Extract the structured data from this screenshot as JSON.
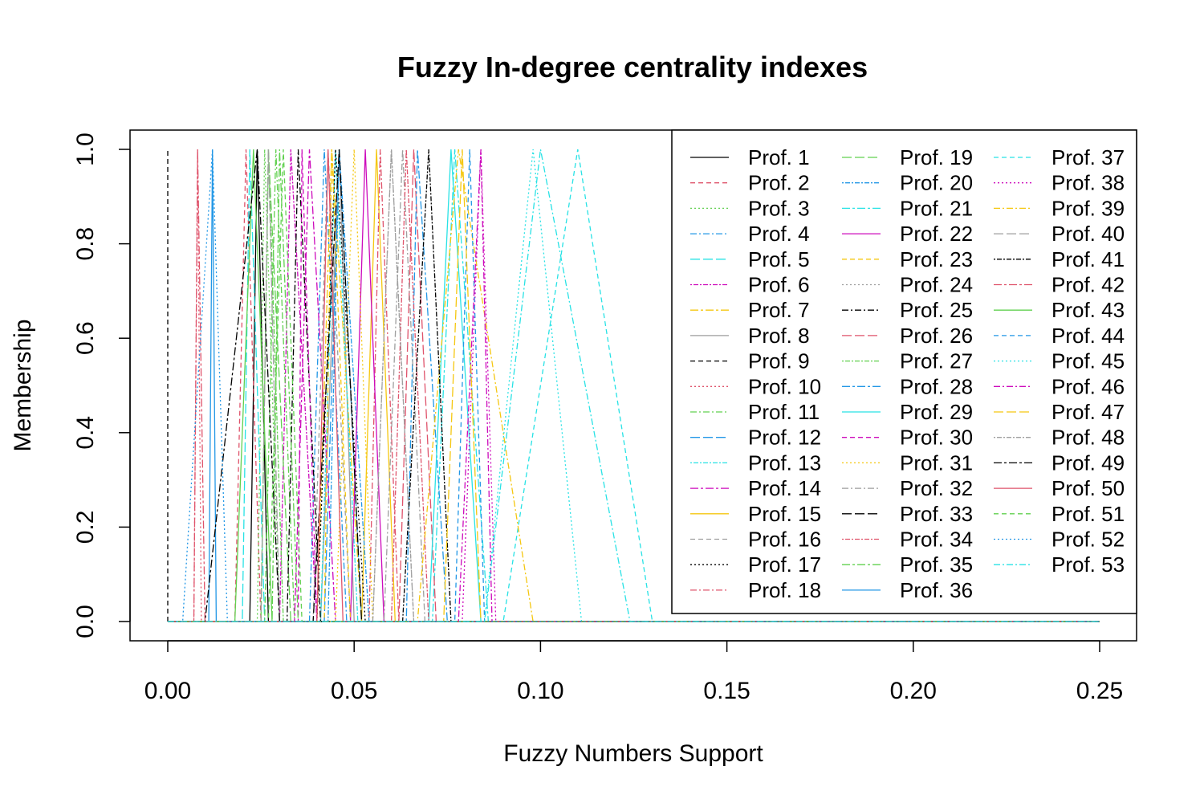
{
  "chart_data": {
    "type": "line",
    "title": "Fuzzy In-degree centrality indexes",
    "xlabel": "Fuzzy Numbers Support",
    "ylabel": "Membership",
    "xlim": [
      0,
      0.25
    ],
    "ylim": [
      0,
      1
    ],
    "x_ticks": [
      "0.00",
      "0.05",
      "0.10",
      "0.15",
      "0.20",
      "0.25"
    ],
    "y_ticks": [
      "0.0",
      "0.2",
      "0.4",
      "0.6",
      "0.8",
      "1.0"
    ],
    "legend_position": "top-right",
    "legend_columns": 3,
    "palette": [
      "#000000",
      "#DF536B",
      "#61D04F",
      "#2297E6",
      "#28E2E5",
      "#CD0BBC",
      "#F5C710",
      "#9E9E9E"
    ],
    "series": [
      {
        "name": "Prof. 1",
        "triangle": [
          0.022,
          0.024,
          0.027
        ]
      },
      {
        "name": "Prof. 2",
        "triangle": [
          0.018,
          0.021,
          0.025
        ]
      },
      {
        "name": "Prof. 3",
        "triangle": [
          0.024,
          0.026,
          0.03
        ]
      },
      {
        "name": "Prof. 4",
        "triangle": [
          0.038,
          0.042,
          0.048
        ]
      },
      {
        "name": "Prof. 5",
        "triangle": [
          0.02,
          0.022,
          0.026
        ]
      },
      {
        "name": "Prof. 6",
        "triangle": [
          0.03,
          0.033,
          0.04
        ]
      },
      {
        "name": "Prof. 7",
        "triangle": [
          0.04,
          0.044,
          0.052
        ]
      },
      {
        "name": "Prof. 8",
        "triangle": [
          0.041,
          0.046,
          0.05
        ]
      },
      {
        "name": "Prof. 9",
        "triangle": [
          0.0,
          0.0,
          0.0
        ]
      },
      {
        "name": "Prof. 10",
        "triangle": [
          0.007,
          0.008,
          0.009
        ]
      },
      {
        "name": "Prof. 11",
        "triangle": [
          0.026,
          0.029,
          0.034
        ]
      },
      {
        "name": "Prof. 12",
        "triangle": [
          0.042,
          0.046,
          0.052
        ]
      },
      {
        "name": "Prof. 13",
        "triangle": [
          0.041,
          0.045,
          0.051
        ]
      },
      {
        "name": "Prof. 14",
        "triangle": [
          0.034,
          0.038,
          0.045
        ]
      },
      {
        "name": "Prof. 15",
        "triangle": [
          0.052,
          0.056,
          0.061
        ]
      },
      {
        "name": "Prof. 16",
        "triangle": [
          0.039,
          0.043,
          0.049
        ]
      },
      {
        "name": "Prof. 17",
        "triangle": [
          0.04,
          0.045,
          0.053
        ]
      },
      {
        "name": "Prof. 18",
        "triangle": [
          0.054,
          0.057,
          0.062
        ]
      },
      {
        "name": "Prof. 19",
        "triangle": [
          0.025,
          0.027,
          0.033
        ]
      },
      {
        "name": "Prof. 20",
        "triangle": [
          0.043,
          0.046,
          0.054
        ]
      },
      {
        "name": "Prof. 21",
        "triangle": [
          0.071,
          0.077,
          0.086
        ]
      },
      {
        "name": "Prof. 22",
        "triangle": [
          0.049,
          0.053,
          0.058
        ]
      },
      {
        "name": "Prof. 23",
        "triangle": [
          0.042,
          0.044,
          0.049
        ]
      },
      {
        "name": "Prof. 24",
        "triangle": [
          0.055,
          0.06,
          0.066
        ]
      },
      {
        "name": "Prof. 25",
        "triangle": [
          0.032,
          0.035,
          0.041
        ]
      },
      {
        "name": "Prof. 26",
        "triangle": [
          0.062,
          0.066,
          0.072
        ]
      },
      {
        "name": "Prof. 27",
        "triangle": [
          0.025,
          0.027,
          0.031
        ]
      },
      {
        "name": "Prof. 28",
        "triangle": [
          0.064,
          0.067,
          0.075
        ]
      },
      {
        "name": "Prof. 29",
        "triangle": [
          0.07,
          0.076,
          0.084
        ]
      },
      {
        "name": "Prof. 30",
        "triangle": [
          0.035,
          0.036,
          0.04
        ]
      },
      {
        "name": "Prof. 31",
        "triangle": [
          0.045,
          0.05,
          0.055
        ]
      },
      {
        "name": "Prof. 32",
        "triangle": [
          0.058,
          0.063,
          0.069
        ]
      },
      {
        "name": "Prof. 33",
        "triangle": [
          0.039,
          0.046,
          0.052
        ]
      },
      {
        "name": "Prof. 34",
        "triangle": [
          0.06,
          0.064,
          0.07
        ]
      },
      {
        "name": "Prof. 35",
        "triangle": [
          0.028,
          0.03,
          0.035
        ]
      },
      {
        "name": "Prof. 36",
        "triangle": [
          0.011,
          0.012,
          0.013
        ]
      },
      {
        "name": "Prof. 37",
        "triangle": [
          0.09,
          0.11,
          0.13
        ]
      },
      {
        "name": "Prof. 38",
        "triangle": [
          0.079,
          0.084,
          0.088
        ]
      },
      {
        "name": "Prof. 39",
        "triangle": [
          0.067,
          0.078,
          0.098
        ]
      },
      {
        "name": "Prof. 40",
        "triangle": [
          0.025,
          0.027,
          0.03
        ]
      },
      {
        "name": "Prof. 41",
        "triangle": [
          0.063,
          0.07,
          0.076
        ]
      },
      {
        "name": "Prof. 42",
        "triangle": [
          0.007,
          0.008,
          0.01
        ]
      },
      {
        "name": "Prof. 43",
        "triangle": [
          0.018,
          0.023,
          0.028
        ]
      },
      {
        "name": "Prof. 44",
        "triangle": [
          0.077,
          0.081,
          0.085
        ]
      },
      {
        "name": "Prof. 45",
        "triangle": [
          0.085,
          0.098,
          0.111
        ]
      },
      {
        "name": "Prof. 46",
        "triangle": [
          0.078,
          0.084,
          0.087
        ]
      },
      {
        "name": "Prof. 47",
        "triangle": [
          0.074,
          0.079,
          0.084
        ]
      },
      {
        "name": "Prof. 48",
        "triangle": [
          0.055,
          0.06,
          0.066
        ]
      },
      {
        "name": "Prof. 49",
        "triangle": [
          0.01,
          0.024,
          0.03
        ]
      },
      {
        "name": "Prof. 50",
        "triangle": [
          0.04,
          0.043,
          0.047
        ]
      },
      {
        "name": "Prof. 51",
        "triangle": [
          0.027,
          0.031,
          0.036
        ]
      },
      {
        "name": "Prof. 52",
        "triangle": [
          0.004,
          0.012,
          0.016
        ]
      },
      {
        "name": "Prof. 53",
        "triangle": [
          0.085,
          0.1,
          0.124
        ]
      }
    ]
  }
}
